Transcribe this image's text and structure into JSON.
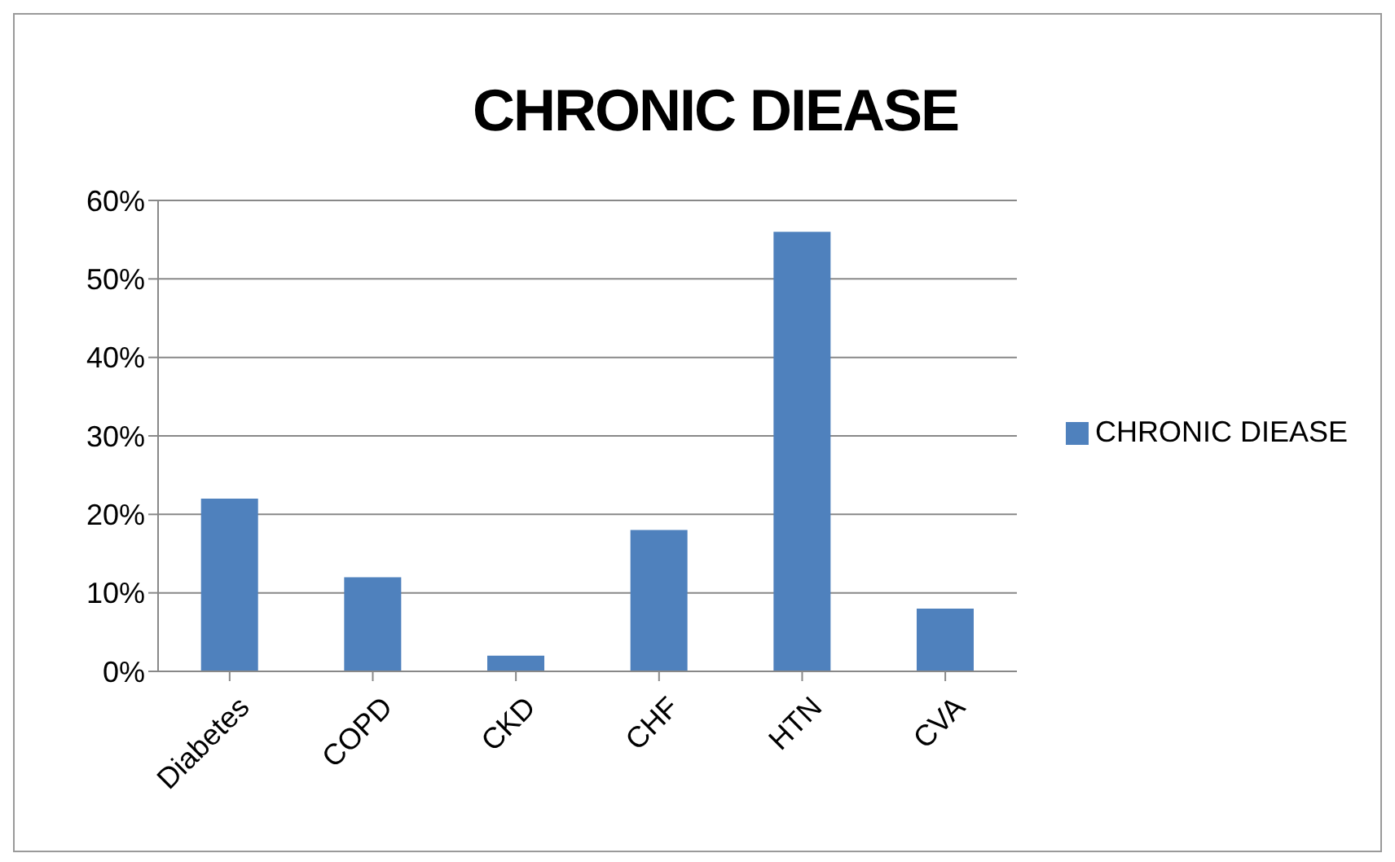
{
  "chart_data": {
    "type": "bar",
    "title": "CHRONIC DIEASE",
    "categories": [
      "Diabetes",
      "COPD",
      "CKD",
      "CHF",
      "HTN",
      "CVA"
    ],
    "series": [
      {
        "name": "CHRONIC DIEASE",
        "color": "#4f81bd",
        "values": [
          22,
          12,
          2,
          18,
          56,
          8
        ]
      }
    ],
    "ylim": [
      0,
      60
    ],
    "yticks": [
      {
        "value": 0,
        "label": "0%"
      },
      {
        "value": 10,
        "label": "10%"
      },
      {
        "value": 20,
        "label": "20%"
      },
      {
        "value": 30,
        "label": "30%"
      },
      {
        "value": 40,
        "label": "40%"
      },
      {
        "value": 50,
        "label": "50%"
      },
      {
        "value": 60,
        "label": "60%"
      }
    ],
    "grid": "y",
    "legend": "right"
  }
}
